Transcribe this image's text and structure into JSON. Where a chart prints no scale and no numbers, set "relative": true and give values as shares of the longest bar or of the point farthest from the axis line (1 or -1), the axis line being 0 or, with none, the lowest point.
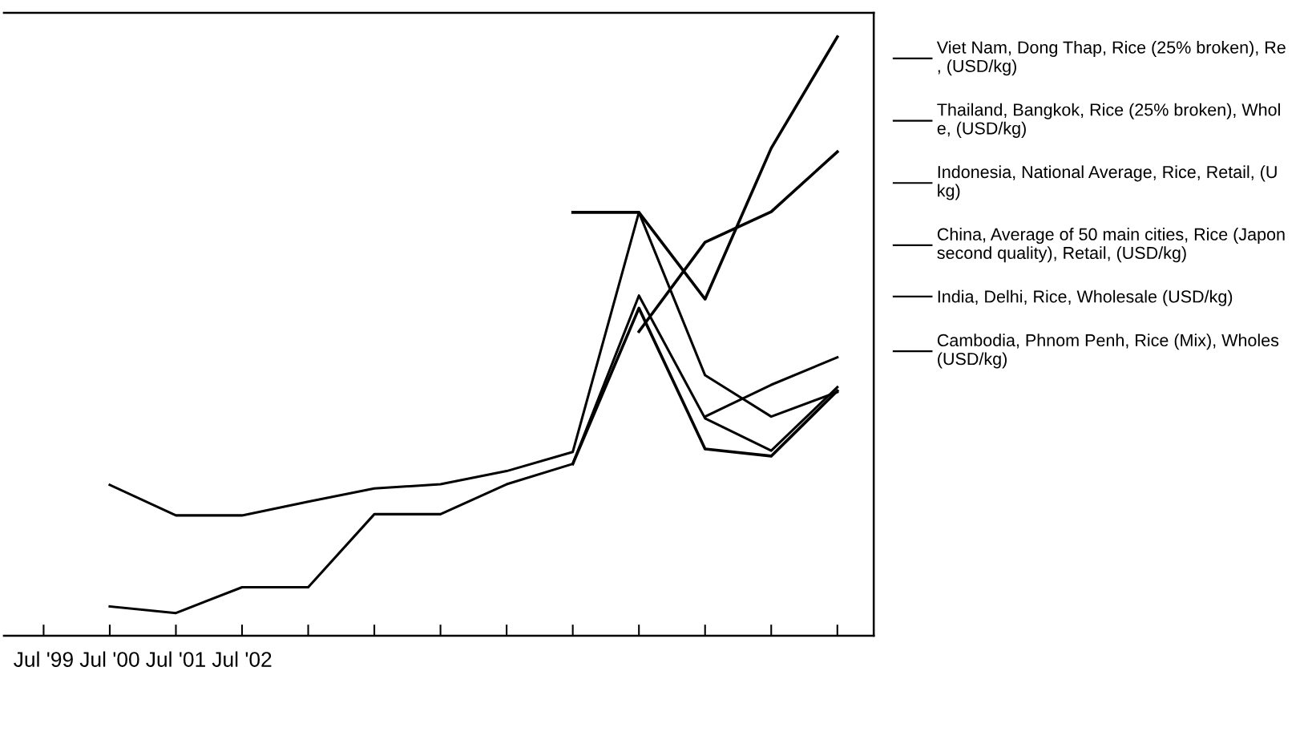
{
  "chart_data": {
    "type": "line",
    "relative": true,
    "legend": "right",
    "marker": "none",
    "line_style": "solid",
    "categories": [
      "Jul '99",
      "Jul '00",
      "Jul '01",
      "Jul '02",
      null,
      null,
      null,
      null,
      null,
      null,
      null,
      null,
      null
    ],
    "series": [
      {
        "name": "Viet Nam, Dong Thap, Rice (25% broken), Re\n, (USD/kg)",
        "color": "#000000",
        "values": [
          null,
          null,
          null,
          null,
          null,
          null,
          null,
          null,
          null,
          0.508,
          0.657,
          0.708,
          0.808
        ]
      },
      {
        "name": "Thailand, Bangkok, Rice (25% broken), Whol\ne, (USD/kg)",
        "color": "#000000",
        "values": [
          null,
          0.252,
          0.201,
          0.201,
          0.224,
          0.246,
          0.253,
          0.275,
          0.307,
          0.707,
          0.435,
          0.366,
          0.407
        ]
      },
      {
        "name": "Indonesia, National Average, Rice, Retail, (U\nkg)",
        "color": "#000000",
        "values": [
          null,
          null,
          null,
          null,
          null,
          null,
          null,
          null,
          0.707,
          0.707,
          0.562,
          0.814,
          1
        ]
      },
      {
        "name": "China, Average of 50 main cities, Rice (Japon\nsecond quality), Retail, (USD/kg)",
        "color": "#000000",
        "values": [
          null,
          null,
          null,
          null,
          null,
          null,
          null,
          null,
          null,
          null,
          0.366,
          0.419,
          0.465
        ]
      },
      {
        "name": "India, Delhi, Rice, Wholesale (USD/kg)",
        "color": "#000000",
        "values": [
          null,
          null,
          null,
          null,
          null,
          null,
          null,
          null,
          0.287,
          0.547,
          0.312,
          0.3,
          0.409
        ]
      },
      {
        "name": "Cambodia, Phnom Penh, Rice (Mix), Wholes\n(USD/kg)",
        "color": "#000000",
        "values": [
          null,
          0.049,
          0.038,
          0.081,
          0.081,
          0.203,
          0.203,
          0.253,
          0.287,
          0.568,
          0.363,
          0.309,
          0.415
        ]
      }
    ]
  }
}
